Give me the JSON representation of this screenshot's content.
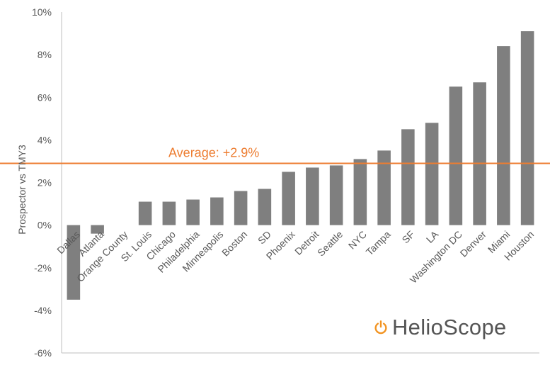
{
  "chart_data": {
    "type": "bar",
    "ylabel": "Prospector vs TMY3",
    "categories": [
      "Dallas",
      "Atlanta",
      "Orange County",
      "St. Louis",
      "Chicago",
      "Philadelphia",
      "Minneapolis",
      "Boston",
      "SD",
      "Phoenix",
      "Detroit",
      "Seattle",
      "NYC",
      "Tampa",
      "SF",
      "LA",
      "Washington DC",
      "Denver",
      "Miami",
      "Houston"
    ],
    "values": [
      -3.5,
      -0.4,
      0.0,
      1.1,
      1.1,
      1.2,
      1.3,
      1.6,
      1.7,
      2.5,
      2.7,
      2.8,
      3.1,
      3.5,
      4.5,
      4.8,
      6.5,
      6.7,
      8.4,
      9.1
    ],
    "ylim": [
      -6,
      10
    ],
    "yticks": [
      -6,
      -4,
      -2,
      0,
      2,
      4,
      6,
      8,
      10
    ],
    "ytick_labels": [
      "-6%",
      "-4%",
      "-2%",
      "0%",
      "2%",
      "4%",
      "6%",
      "8%",
      "10%"
    ],
    "average": 2.9,
    "average_label": "Average: +2.9%",
    "grid": false,
    "bar_color": "#7f7f7f",
    "average_color": "#ed7d31"
  },
  "logo": {
    "text": "HelioScope",
    "icon": "power-icon",
    "icon_color": "#f29422",
    "text_color": "#555555"
  }
}
